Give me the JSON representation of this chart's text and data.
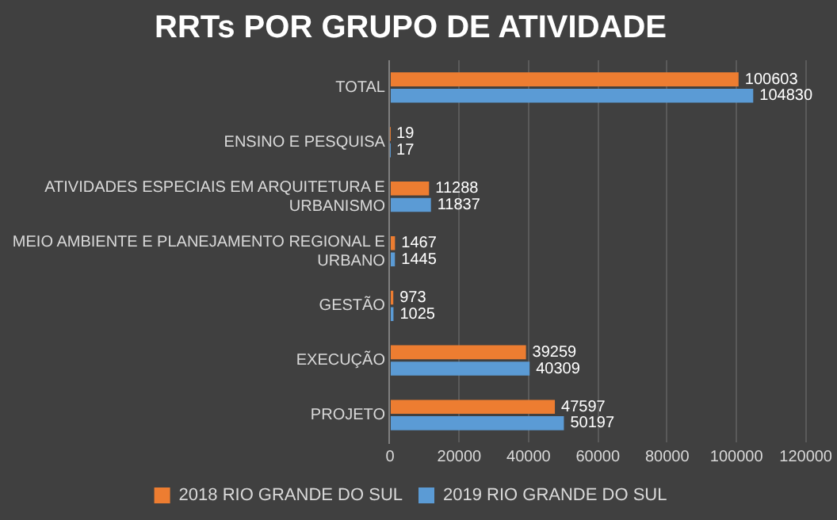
{
  "chart_data": {
    "type": "bar",
    "title": "RRTs POR GRUPO DE ATIVIDADE",
    "orientation": "horizontal",
    "categories": [
      "TOTAL",
      "ENSINO E PESQUISA",
      "ATIVIDADES ESPECIAIS EM ARQUITETURA E URBANISMO",
      "MEIO AMBIENTE E PLANEJAMENTO REGIONAL E URBANO",
      "GESTÃO",
      "EXECUÇÃO",
      "PROJETO"
    ],
    "series": [
      {
        "name": "2018 RIO GRANDE DO SUL",
        "color": "#ed7d31",
        "values": [
          100603,
          19,
          11288,
          1467,
          973,
          39259,
          47597
        ]
      },
      {
        "name": "2019 RIO GRANDE DO SUL",
        "color": "#5b9bd5",
        "values": [
          104830,
          17,
          11837,
          1445,
          1025,
          40309,
          50197
        ]
      }
    ],
    "xlim": [
      0,
      120000
    ],
    "xticks": [
      0,
      20000,
      40000,
      60000,
      80000,
      100000,
      120000
    ],
    "grid": "x",
    "legend": "bottom",
    "data_labels": true
  }
}
